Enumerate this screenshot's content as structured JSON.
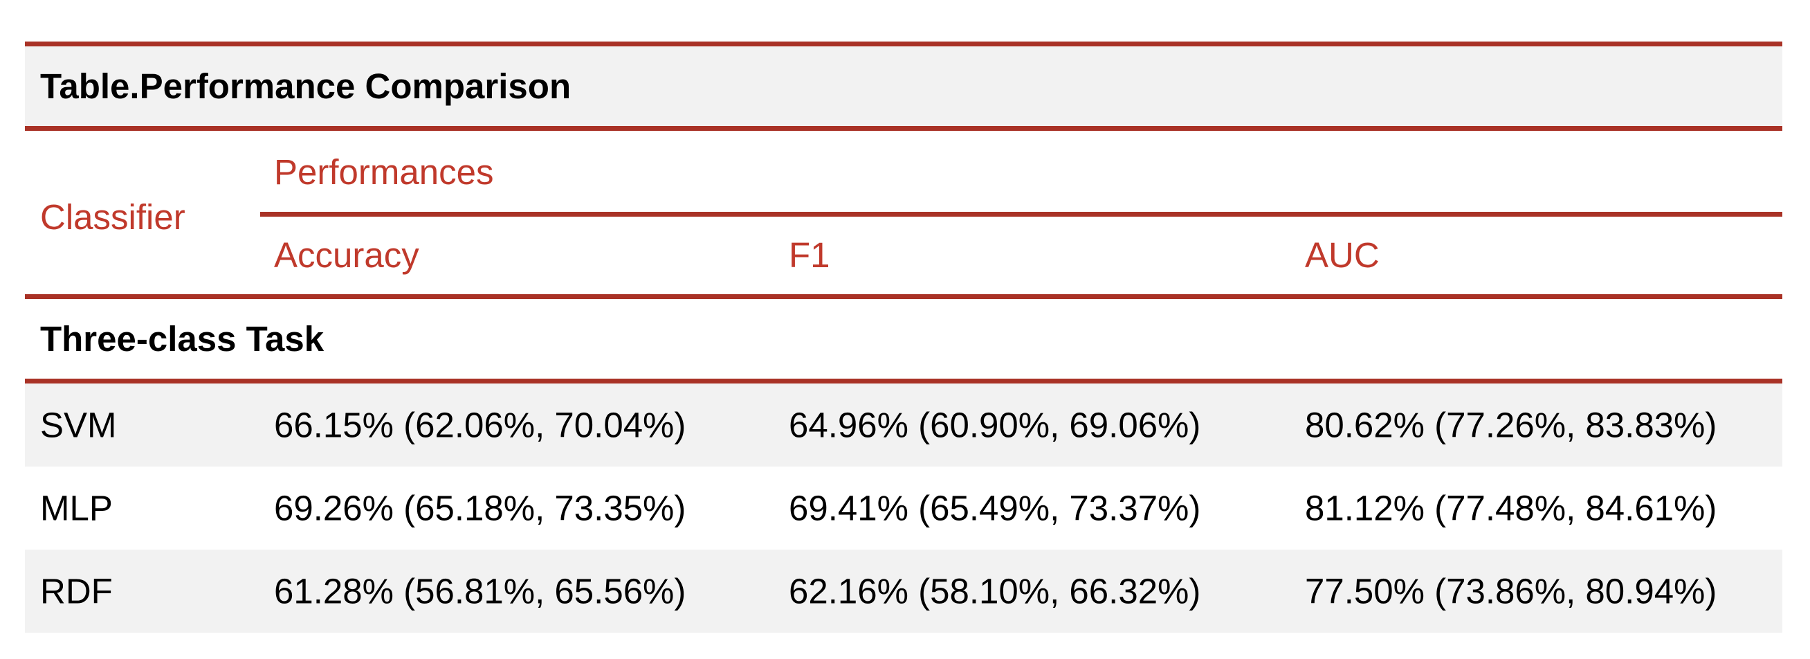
{
  "title": "Table.Performance Comparison",
  "header": {
    "classifier": "Classifier",
    "performances": "Performances",
    "columns": [
      "Accuracy",
      "F1",
      "AUC"
    ]
  },
  "section": "Three-class Task",
  "rows": [
    {
      "classifier": "SVM",
      "accuracy": "66.15% (62.06%, 70.04%)",
      "f1": "64.96% (60.90%, 69.06%)",
      "auc": "80.62% (77.26%, 83.83%)"
    },
    {
      "classifier": "MLP",
      "accuracy": "69.26% (65.18%, 73.35%)",
      "f1": "69.41% (65.49%, 73.37%)",
      "auc": "81.12% (77.48%, 84.61%)"
    },
    {
      "classifier": "RDF",
      "accuracy": "61.28% (56.81%, 65.56%)",
      "f1": "62.16% (58.10%, 66.32%)",
      "auc": "77.50% (73.86%, 80.94%)"
    }
  ],
  "colors": {
    "rule": "#a93226",
    "header_text": "#c0392b",
    "shaded_row": "#f2f2f2"
  }
}
